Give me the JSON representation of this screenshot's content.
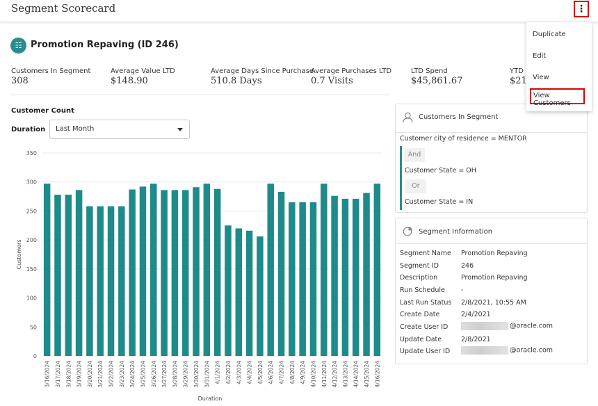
{
  "app": {
    "title": "Segment Scorecard"
  },
  "menu": {
    "items": [
      "Duplicate",
      "Edit",
      "View",
      "View Customers"
    ]
  },
  "segment": {
    "title": "Promotion Repaving (ID 246)"
  },
  "metrics": [
    {
      "label": "Customers In Segment",
      "value": "308"
    },
    {
      "label": "Average Value LTD",
      "value": "$148.90"
    },
    {
      "label": "Average Days Since Purchase",
      "value": "510.8 Days"
    },
    {
      "label": "Average Purchases LTD",
      "value": "0.7 Visits"
    },
    {
      "label": "LTD Spend",
      "value": "$45,861.67"
    },
    {
      "label": "YTD",
      "value": "$21"
    }
  ],
  "customer_count": {
    "label": "Customer Count",
    "duration_label": "Duration",
    "duration_value": "Last Month"
  },
  "segment_rules": {
    "title": "Customers In Segment",
    "rule1": "Customer city of residence = MENTOR",
    "and_label": "And",
    "rule2": "Customer State = OH",
    "or_label": "Or",
    "rule3": "Customer State = IN"
  },
  "segment_info": {
    "title": "Segment Information",
    "rows": [
      {
        "key": "Segment Name",
        "value": "Promotion Repaving"
      },
      {
        "key": "Segment ID",
        "value": "246"
      },
      {
        "key": "Description",
        "value": "Promotion Repaving"
      },
      {
        "key": "Run Schedule",
        "value": "-"
      },
      {
        "key": "Last Run Status",
        "value": "2/8/2021, 10:55 AM"
      },
      {
        "key": "Create Date",
        "value": "2/4/2021"
      },
      {
        "key": "Create User ID",
        "value": "@oracle.com"
      },
      {
        "key": "Update Date",
        "value": "2/8/2021"
      },
      {
        "key": "Update User ID",
        "value": "@oracle.com"
      }
    ]
  },
  "colors": {
    "accent": "#2a8c8c",
    "bar": "#1f8a8a",
    "highlight": "#dd0000"
  },
  "chart_data": {
    "type": "bar",
    "xlabel": "Duration",
    "ylabel": "Customers",
    "ylim": [
      0,
      350
    ],
    "yticks": [
      0,
      50,
      100,
      150,
      200,
      250,
      300,
      350
    ],
    "grid": true,
    "categories": [
      "3/16/2024",
      "3/17/2024",
      "3/18/2024",
      "3/19/2024",
      "3/20/2024",
      "3/21/2024",
      "3/22/2024",
      "3/23/2024",
      "3/24/2024",
      "3/25/2024",
      "3/26/2024",
      "3/27/2024",
      "3/28/2024",
      "3/29/2024",
      "3/30/2024",
      "3/31/2024",
      "4/1/2024",
      "4/2/2024",
      "4/3/2024",
      "4/4/2024",
      "4/5/2024",
      "4/6/2024",
      "4/7/2024",
      "4/8/2024",
      "4/9/2024",
      "4/10/2024",
      "4/11/2024",
      "4/12/2024",
      "4/13/2024",
      "4/14/2024",
      "4/15/2024",
      "4/16/2024"
    ],
    "values": [
      297,
      278,
      278,
      286,
      258,
      258,
      258,
      258,
      287,
      292,
      297,
      286,
      286,
      286,
      291,
      297,
      288,
      225,
      220,
      216,
      206,
      297,
      283,
      265,
      265,
      265,
      297,
      276,
      271,
      271,
      281,
      297
    ]
  }
}
